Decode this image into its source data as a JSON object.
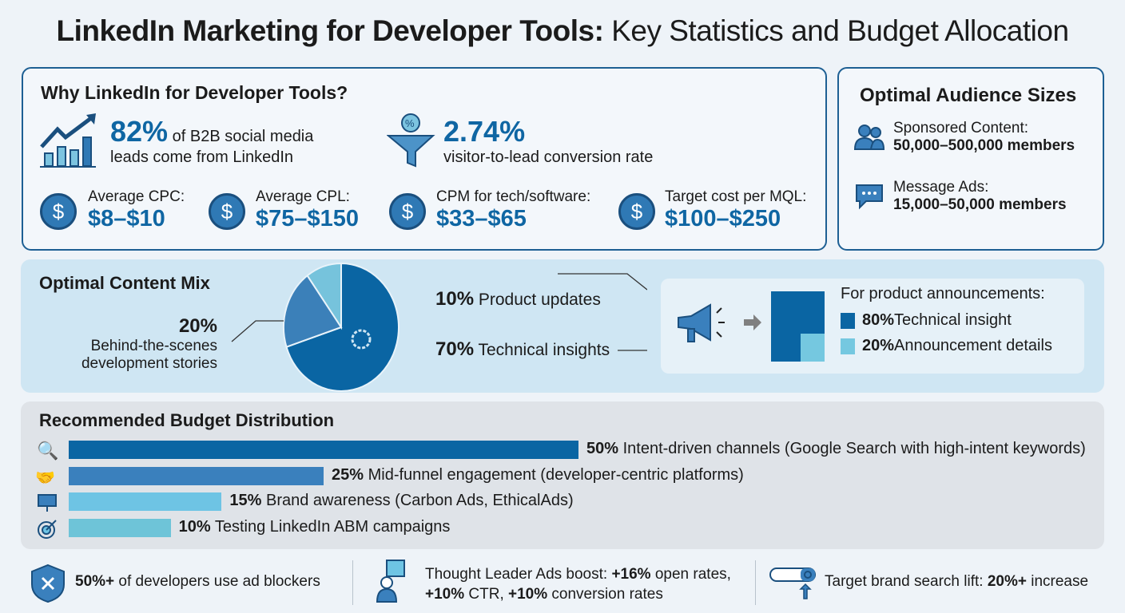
{
  "title": {
    "bold": "LinkedIn Marketing for Developer Tools:",
    "rest": " Key Statistics and Budget Allocation"
  },
  "why": {
    "heading": "Why LinkedIn for Developer Tools?",
    "stat1": {
      "value": "82%",
      "text1": " of B2B social media",
      "text2": "leads come from LinkedIn",
      "icon": "growth-chart-icon"
    },
    "stat2": {
      "value": "2.74%",
      "text": "visitor-to-lead conversion rate",
      "icon": "funnel-icon"
    },
    "costs": [
      {
        "label": "Average CPC:",
        "value": "$8–$10"
      },
      {
        "label": "Average CPL:",
        "value": "$75–$150"
      },
      {
        "label": "CPM for tech/software:",
        "value": "$33–$65"
      },
      {
        "label": "Target cost per MQL:",
        "value": "$100–$250"
      }
    ]
  },
  "audience": {
    "heading": "Optimal Audience Sizes",
    "items": [
      {
        "label": "Sponsored Content:",
        "value": "50,000–500,000 members",
        "icon": "users-icon"
      },
      {
        "label": "Message Ads:",
        "value": "15,000–50,000 members",
        "icon": "chat-icon"
      }
    ]
  },
  "content_mix": {
    "heading": "Optimal Content Mix",
    "labels": {
      "product": {
        "pct": "10%",
        "text": " Product updates"
      },
      "technical": {
        "pct": "70%",
        "text": " Technical insights"
      },
      "behind": {
        "pct": "20%",
        "text1": "Behind-the-scenes",
        "text2": "development stories"
      }
    },
    "announce": {
      "heading": "For product announcements:",
      "items": [
        {
          "pct": "80%",
          "text": " Technical insight",
          "color": "#0a65a3"
        },
        {
          "pct": "20%",
          "text": " Announcement details",
          "color": "#75c8e0"
        }
      ]
    }
  },
  "budget": {
    "heading": "Recommended Budget Distribution",
    "items": [
      {
        "pct": "50%",
        "text": " Intent-driven channels (Google Search with high-intent keywords)",
        "icon": "search-icon"
      },
      {
        "pct": "25%",
        "text": " Mid-funnel engagement (developer-centric platforms)",
        "icon": "handshake-icon"
      },
      {
        "pct": "15%",
        "text": " Brand awareness (Carbon Ads, EthicalAds)",
        "icon": "billboard-icon"
      },
      {
        "pct": "10%",
        "text": " Testing LinkedIn ABM campaigns",
        "icon": "target-icon"
      }
    ]
  },
  "footer": {
    "item1": {
      "bold": "50%+",
      "text": " of developers use ad blockers"
    },
    "item2": {
      "line1a": "Thought Leader Ads boost: ",
      "line1b": "+16%",
      "line1c": " open rates,",
      "line2a": "+10%",
      "line2b": " CTR, ",
      "line2c": "+10%",
      "line2d": " conversion rates"
    },
    "item3": {
      "text": "Target brand search lift: ",
      "bold": "20%+",
      "rest": " increase"
    }
  },
  "chart_data": [
    {
      "type": "pie",
      "categories": [
        "Technical insights",
        "Behind-the-scenes development stories",
        "Product updates"
      ],
      "values": [
        70,
        20,
        10
      ],
      "colors": [
        "#0a65a3",
        "#3b80b9",
        "#76c3dc"
      ]
    },
    {
      "type": "bar",
      "orientation": "horizontal",
      "categories": [
        "Intent-driven channels (Google Search with high-intent keywords)",
        "Mid-funnel engagement (developer-centric platforms)",
        "Brand awareness (Carbon Ads, EthicalAds)",
        "Testing LinkedIn ABM campaigns"
      ],
      "values": [
        50,
        25,
        15,
        10
      ],
      "colors": [
        "#0a65a3",
        "#3a80bd",
        "#6ec4e4",
        "#6ec4d8"
      ]
    },
    {
      "type": "bar",
      "stacked": true,
      "categories": [
        "Technical insight",
        "Announcement details"
      ],
      "values": [
        80,
        20
      ]
    }
  ]
}
